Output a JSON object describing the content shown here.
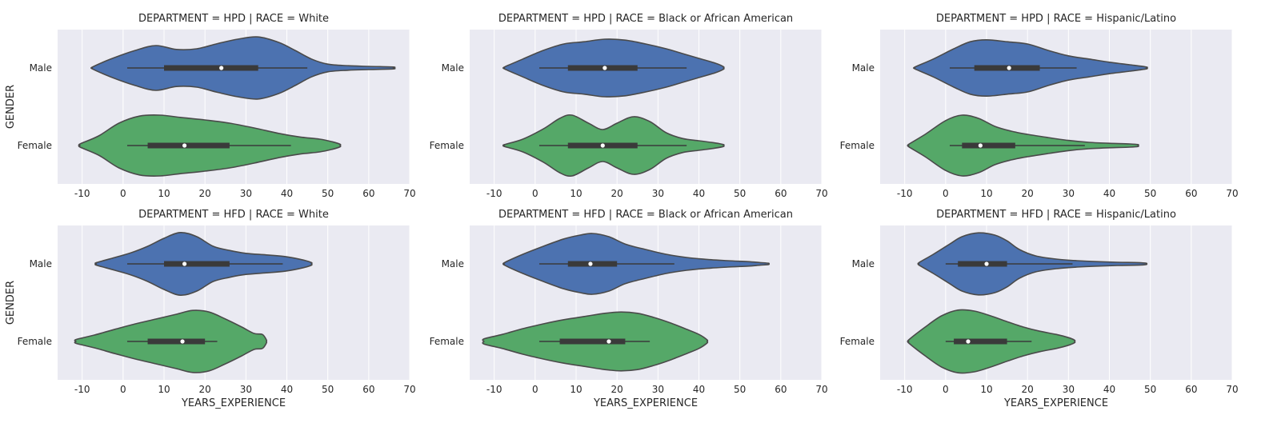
{
  "chart_data": {
    "type": "violin",
    "orientation": "horizontal",
    "x_label": "YEARS_EXPERIENCE",
    "y_label": "GENDER",
    "categories": [
      "Male",
      "Female"
    ],
    "x_ticks": [
      -10,
      0,
      10,
      20,
      30,
      40,
      50,
      60,
      70
    ],
    "x_range": [
      -16,
      70
    ],
    "grid": true,
    "colors": {
      "Male": "#4c72b0",
      "Female": "#55a868",
      "background": "#eaeaf2",
      "outline": "#4a4a4a",
      "box": "#3a3a3a"
    },
    "facets": [
      {
        "title": "DEPARTMENT = HPD | RACE = White",
        "violins": [
          {
            "category": "Male",
            "range": [
              -7.5,
              66
            ],
            "q1": 10,
            "median": 24,
            "q3": 33,
            "whisker": [
              1,
              45
            ],
            "profile": [
              [
                -7.5,
                0.03
              ],
              [
                -3,
                0.28
              ],
              [
                3,
                0.55
              ],
              [
                8,
                0.7
              ],
              [
                13,
                0.58
              ],
              [
                18,
                0.6
              ],
              [
                23,
                0.76
              ],
              [
                28,
                0.9
              ],
              [
                33,
                0.97
              ],
              [
                38,
                0.8
              ],
              [
                42,
                0.55
              ],
              [
                46,
                0.28
              ],
              [
                50,
                0.12
              ],
              [
                55,
                0.07
              ],
              [
                60,
                0.05
              ],
              [
                66,
                0.03
              ]
            ]
          },
          {
            "category": "Female",
            "range": [
              -10.5,
              53
            ],
            "q1": 6,
            "median": 15,
            "q3": 26,
            "whisker": [
              1,
              41
            ],
            "profile": [
              [
                -10.5,
                0.05
              ],
              [
                -6,
                0.3
              ],
              [
                -1,
                0.7
              ],
              [
                4,
                0.92
              ],
              [
                9,
                0.95
              ],
              [
                14,
                0.88
              ],
              [
                20,
                0.8
              ],
              [
                26,
                0.7
              ],
              [
                32,
                0.55
              ],
              [
                38,
                0.38
              ],
              [
                43,
                0.27
              ],
              [
                48,
                0.2
              ],
              [
                51,
                0.12
              ],
              [
                53,
                0.04
              ]
            ]
          }
        ]
      },
      {
        "title": "DEPARTMENT = HPD | RACE = Black or African American",
        "violins": [
          {
            "category": "Male",
            "range": [
              -7.5,
              46
            ],
            "q1": 8,
            "median": 17,
            "q3": 25,
            "whisker": [
              1,
              37
            ],
            "profile": [
              [
                -7.5,
                0.03
              ],
              [
                -3,
                0.28
              ],
              [
                2,
                0.55
              ],
              [
                7,
                0.75
              ],
              [
                12,
                0.82
              ],
              [
                17,
                0.9
              ],
              [
                22,
                0.87
              ],
              [
                27,
                0.75
              ],
              [
                32,
                0.6
              ],
              [
                36,
                0.45
              ],
              [
                40,
                0.3
              ],
              [
                44,
                0.15
              ],
              [
                46,
                0.04
              ]
            ]
          },
          {
            "category": "Female",
            "range": [
              -7.5,
              46
            ],
            "q1": 8,
            "median": 16.5,
            "q3": 25,
            "whisker": [
              1,
              37
            ],
            "profile": [
              [
                -7.5,
                0.03
              ],
              [
                -3,
                0.2
              ],
              [
                2,
                0.52
              ],
              [
                6,
                0.85
              ],
              [
                9,
                0.95
              ],
              [
                13,
                0.7
              ],
              [
                16.5,
                0.5
              ],
              [
                20,
                0.7
              ],
              [
                24,
                0.9
              ],
              [
                28,
                0.75
              ],
              [
                32,
                0.4
              ],
              [
                36,
                0.22
              ],
              [
                40,
                0.15
              ],
              [
                44,
                0.08
              ],
              [
                46,
                0.03
              ]
            ]
          }
        ]
      },
      {
        "title": "DEPARTMENT = HPD | RACE = Hispanic/Latino",
        "violins": [
          {
            "category": "Male",
            "range": [
              -7.5,
              49
            ],
            "q1": 7,
            "median": 15.5,
            "q3": 23,
            "whisker": [
              1,
              32
            ],
            "profile": [
              [
                -7.5,
                0.03
              ],
              [
                -3,
                0.28
              ],
              [
                2,
                0.6
              ],
              [
                6,
                0.82
              ],
              [
                10,
                0.88
              ],
              [
                15,
                0.82
              ],
              [
                20,
                0.75
              ],
              [
                25,
                0.55
              ],
              [
                30,
                0.38
              ],
              [
                35,
                0.28
              ],
              [
                40,
                0.18
              ],
              [
                45,
                0.1
              ],
              [
                49,
                0.03
              ]
            ]
          },
          {
            "category": "Female",
            "range": [
              -9,
              47
            ],
            "q1": 4,
            "median": 8.5,
            "q3": 17,
            "whisker": [
              1,
              34
            ],
            "profile": [
              [
                -9,
                0.04
              ],
              [
                -5,
                0.35
              ],
              [
                0,
                0.78
              ],
              [
                4,
                0.95
              ],
              [
                8,
                0.85
              ],
              [
                12,
                0.6
              ],
              [
                16,
                0.45
              ],
              [
                20,
                0.35
              ],
              [
                25,
                0.25
              ],
              [
                30,
                0.16
              ],
              [
                35,
                0.1
              ],
              [
                40,
                0.07
              ],
              [
                45,
                0.05
              ],
              [
                47,
                0.03
              ]
            ]
          }
        ]
      },
      {
        "title": "DEPARTMENT = HFD | RACE = White",
        "violins": [
          {
            "category": "Male",
            "range": [
              -6.5,
              46
            ],
            "q1": 10,
            "median": 15,
            "q3": 26,
            "whisker": [
              1,
              39
            ],
            "profile": [
              [
                -6.5,
                0.04
              ],
              [
                -2,
                0.2
              ],
              [
                2,
                0.35
              ],
              [
                6,
                0.55
              ],
              [
                10,
                0.8
              ],
              [
                14,
                0.98
              ],
              [
                18,
                0.85
              ],
              [
                22,
                0.55
              ],
              [
                26,
                0.42
              ],
              [
                30,
                0.33
              ],
              [
                35,
                0.28
              ],
              [
                40,
                0.22
              ],
              [
                44,
                0.12
              ],
              [
                46,
                0.04
              ]
            ]
          },
          {
            "category": "Female",
            "range": [
              -11.5,
              35
            ],
            "q1": 6,
            "median": 14.5,
            "q3": 20,
            "whisker": [
              1,
              23
            ],
            "profile": [
              [
                -11.5,
                0.06
              ],
              [
                -7,
                0.2
              ],
              [
                -2,
                0.38
              ],
              [
                3,
                0.55
              ],
              [
                8,
                0.7
              ],
              [
                13,
                0.85
              ],
              [
                17,
                0.97
              ],
              [
                21,
                0.92
              ],
              [
                25,
                0.7
              ],
              [
                29,
                0.45
              ],
              [
                32,
                0.25
              ],
              [
                34,
                0.22
              ],
              [
                35,
                0.05
              ]
            ]
          }
        ]
      },
      {
        "title": "DEPARTMENT = HFD | RACE = Black or African American",
        "violins": [
          {
            "category": "Male",
            "range": [
              -7.5,
              57
            ],
            "q1": 8,
            "median": 13.5,
            "q3": 20,
            "whisker": [
              1,
              34
            ],
            "profile": [
              [
                -7.5,
                0.04
              ],
              [
                -3,
                0.3
              ],
              [
                2,
                0.55
              ],
              [
                7,
                0.78
              ],
              [
                11,
                0.9
              ],
              [
                14,
                0.95
              ],
              [
                18,
                0.85
              ],
              [
                22,
                0.62
              ],
              [
                27,
                0.45
              ],
              [
                32,
                0.3
              ],
              [
                37,
                0.2
              ],
              [
                42,
                0.14
              ],
              [
                47,
                0.1
              ],
              [
                52,
                0.07
              ],
              [
                55,
                0.04
              ],
              [
                57,
                0.02
              ]
            ]
          },
          {
            "category": "Female",
            "range": [
              -12.5,
              42
            ],
            "q1": 6,
            "median": 18,
            "q3": 22,
            "whisker": [
              1,
              28
            ],
            "profile": [
              [
                -12.5,
                0.08
              ],
              [
                -8,
                0.22
              ],
              [
                -3,
                0.4
              ],
              [
                2,
                0.55
              ],
              [
                7,
                0.68
              ],
              [
                12,
                0.78
              ],
              [
                17,
                0.88
              ],
              [
                21,
                0.92
              ],
              [
                25,
                0.88
              ],
              [
                29,
                0.75
              ],
              [
                33,
                0.58
              ],
              [
                37,
                0.38
              ],
              [
                40,
                0.22
              ],
              [
                42,
                0.05
              ]
            ]
          }
        ]
      },
      {
        "title": "DEPARTMENT = HFD | RACE = Hispanic/Latino",
        "violins": [
          {
            "category": "Male",
            "range": [
              -6.5,
              49
            ],
            "q1": 3,
            "median": 10,
            "q3": 15,
            "whisker": [
              0,
              31
            ],
            "profile": [
              [
                -6.5,
                0.04
              ],
              [
                -3,
                0.3
              ],
              [
                1,
                0.62
              ],
              [
                4,
                0.85
              ],
              [
                8,
                0.97
              ],
              [
                12,
                0.9
              ],
              [
                15,
                0.72
              ],
              [
                18,
                0.45
              ],
              [
                22,
                0.25
              ],
              [
                27,
                0.15
              ],
              [
                32,
                0.1
              ],
              [
                37,
                0.07
              ],
              [
                42,
                0.05
              ],
              [
                47,
                0.04
              ],
              [
                49,
                0.02
              ]
            ]
          },
          {
            "category": "Female",
            "range": [
              -9,
              31.5
            ],
            "q1": 2,
            "median": 5.5,
            "q3": 15,
            "whisker": [
              0,
              21
            ],
            "profile": [
              [
                -9,
                0.05
              ],
              [
                -5,
                0.45
              ],
              [
                -1,
                0.8
              ],
              [
                3,
                0.98
              ],
              [
                7,
                0.95
              ],
              [
                11,
                0.8
              ],
              [
                15,
                0.62
              ],
              [
                19,
                0.45
              ],
              [
                23,
                0.32
              ],
              [
                27,
                0.22
              ],
              [
                30,
                0.12
              ],
              [
                31.5,
                0.04
              ]
            ]
          }
        ]
      }
    ]
  }
}
